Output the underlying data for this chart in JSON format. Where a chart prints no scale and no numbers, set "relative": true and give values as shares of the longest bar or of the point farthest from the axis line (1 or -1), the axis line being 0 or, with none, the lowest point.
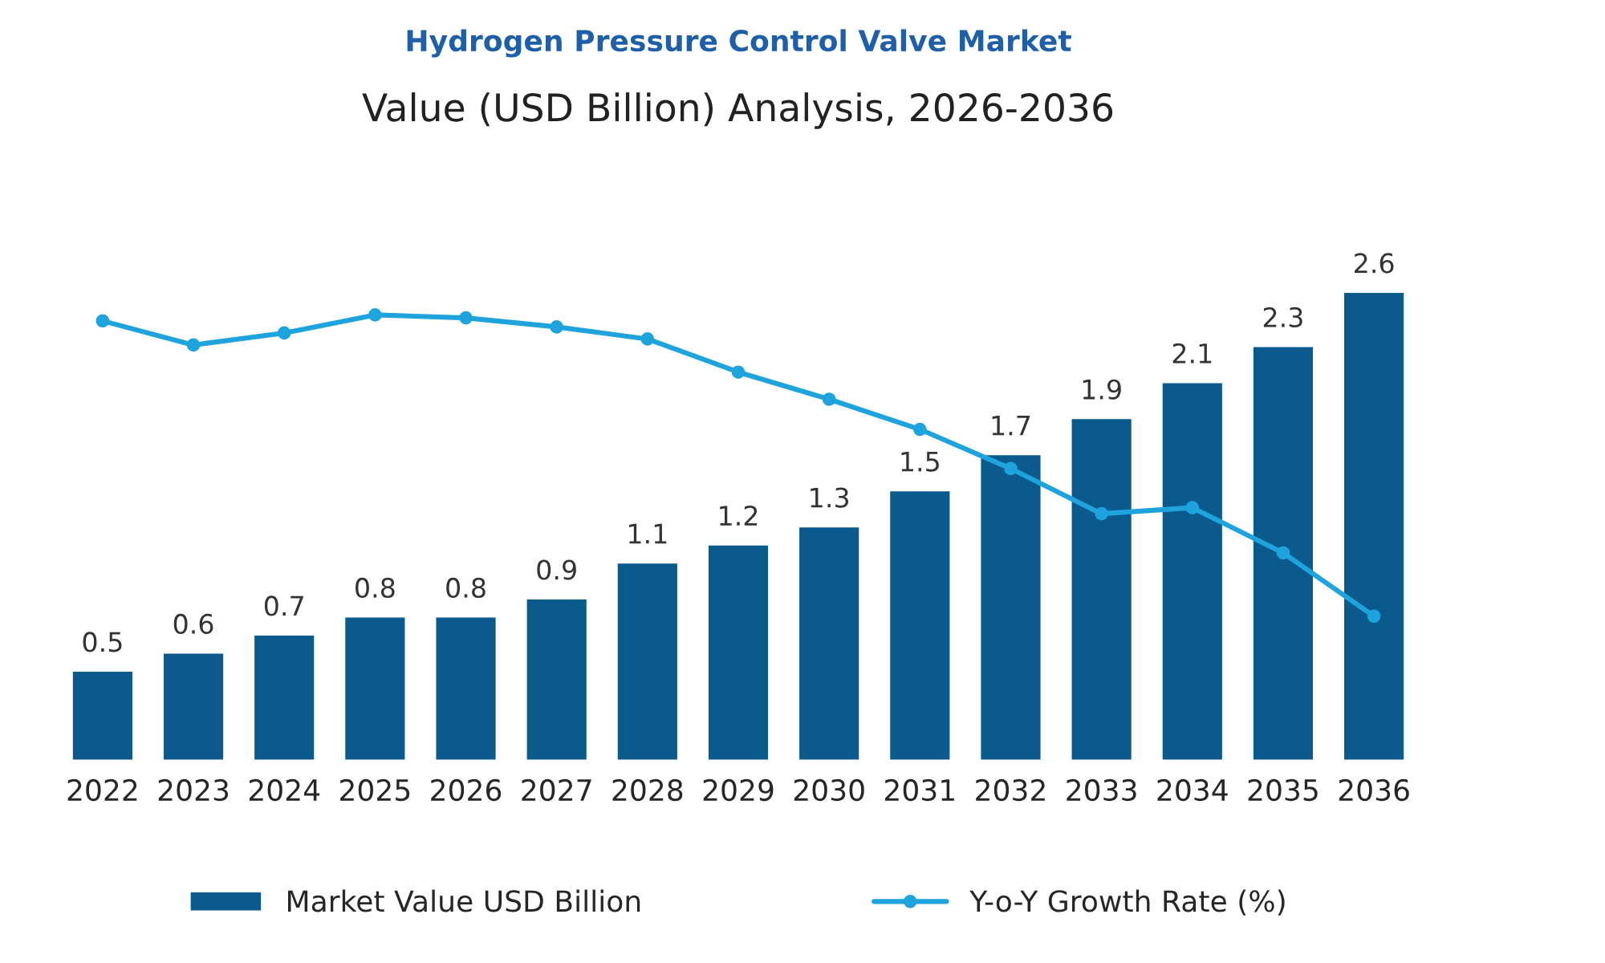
{
  "chart_data": [
    {
      "type": "bar",
      "title": "Hydrogen Pressure Control Valve Market",
      "subtitle": "Value (USD Billion) Analysis, 2026-2036",
      "categories": [
        "2022",
        "2023",
        "2024",
        "2025",
        "2026",
        "2027",
        "2028",
        "2029",
        "2030",
        "2031",
        "2032",
        "2033",
        "2034",
        "2035",
        "2036"
      ],
      "series": [
        {
          "name": "Market Value USD Billion",
          "color": "#0b5a8e",
          "values": [
            0.5,
            0.6,
            0.7,
            0.8,
            0.8,
            0.9,
            1.1,
            1.2,
            1.3,
            1.5,
            1.7,
            1.9,
            2.1,
            2.3,
            2.6
          ]
        }
      ],
      "data_labels": true,
      "legend": "bottom",
      "tick_labels": "x"
    },
    {
      "type": "line",
      "relative": true,
      "categories": [
        null,
        null,
        null,
        null,
        null,
        null,
        null,
        null,
        null,
        null,
        null,
        null,
        null,
        null,
        null
      ],
      "series": [
        {
          "name": "Y-o-Y Growth Rate (%)",
          "color": "#1ea3dd",
          "values": [
            0.98,
            0.9,
            0.94,
            1.0,
            0.99,
            0.96,
            0.92,
            0.81,
            0.72,
            0.62,
            0.49,
            0.34,
            0.36,
            0.21,
            0.0
          ]
        }
      ],
      "marker": "circle",
      "legend": "bottom"
    }
  ]
}
